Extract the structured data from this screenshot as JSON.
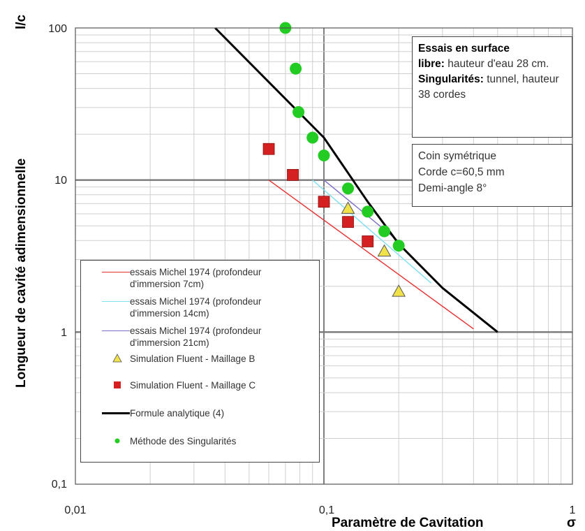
{
  "chart_data": {
    "type": "scatter",
    "x_scale": "log",
    "y_scale": "log",
    "xlim": [
      0.01,
      1
    ],
    "ylim": [
      0.1,
      100
    ],
    "x_ticks": [
      "0,01",
      "0,1",
      "1"
    ],
    "y_ticks": [
      "0,1",
      "1",
      "10",
      "100"
    ],
    "xlabel": "Paramètre de Cavitation",
    "xlabel_symbol": "σ",
    "ylabel": "Longueur de cavité adimensionnelle",
    "ylabel_symbol": "l/c",
    "grid": true,
    "legend_position": "bottom-left",
    "series": [
      {
        "name": "essais Michel 1974 (profondeur d'immersion 7cm)",
        "kind": "line",
        "color": "#e83030",
        "points": [
          [
            0.06,
            10
          ],
          [
            0.4,
            1.05
          ]
        ]
      },
      {
        "name": "essais Michel 1974 (profondeur d'immersion 14cm)",
        "kind": "line",
        "color": "#7fe0f0",
        "points": [
          [
            0.09,
            10
          ],
          [
            0.27,
            2.1
          ]
        ]
      },
      {
        "name": "essais Michel 1974 (profondeur d'immersion 21cm)",
        "kind": "line",
        "color": "#7a6fc8",
        "points": [
          [
            0.1,
            10
          ],
          [
            0.21,
            3.7
          ]
        ]
      },
      {
        "name": "Simulation Fluent - Maillage B",
        "kind": "triangle",
        "color": "#f2e24a",
        "points": [
          [
            0.125,
            6.5
          ],
          [
            0.175,
            3.4
          ],
          [
            0.2,
            1.85
          ]
        ]
      },
      {
        "name": "Simulation Fluent - Maillage C",
        "kind": "square",
        "color": "#d42020",
        "points": [
          [
            0.06,
            16
          ],
          [
            0.075,
            10.8
          ],
          [
            0.1,
            7.2
          ],
          [
            0.125,
            5.3
          ],
          [
            0.15,
            3.95
          ]
        ]
      },
      {
        "name": "Formule analytique (4)",
        "kind": "bold-line",
        "color": "#000000",
        "points": [
          [
            0.0365,
            100
          ],
          [
            0.1,
            19
          ],
          [
            0.15,
            7.2
          ],
          [
            0.2,
            3.8
          ],
          [
            0.3,
            1.95
          ],
          [
            0.5,
            1.0
          ]
        ]
      },
      {
        "name": "Méthode des Singularités",
        "kind": "circle",
        "color": "#22cc22",
        "points": [
          [
            0.07,
            100
          ],
          [
            0.077,
            54
          ],
          [
            0.079,
            28
          ],
          [
            0.09,
            19
          ],
          [
            0.1,
            14.5
          ],
          [
            0.125,
            8.8
          ],
          [
            0.15,
            6.2
          ],
          [
            0.175,
            4.6
          ],
          [
            0.2,
            3.7
          ]
        ]
      }
    ]
  },
  "note_box": {
    "line1": "Essais en surface",
    "line2_bold": "libre:",
    "line2_rest": " hauteur d'eau 28 cm.",
    "line3_bold": "Singularités:",
    "line3_rest": "  tunnel, hauteur 38 cordes"
  },
  "coin_box": {
    "line1": "Coin symétrique",
    "line2": "Corde c=60,5 mm",
    "line3": "Demi-angle 8°"
  }
}
